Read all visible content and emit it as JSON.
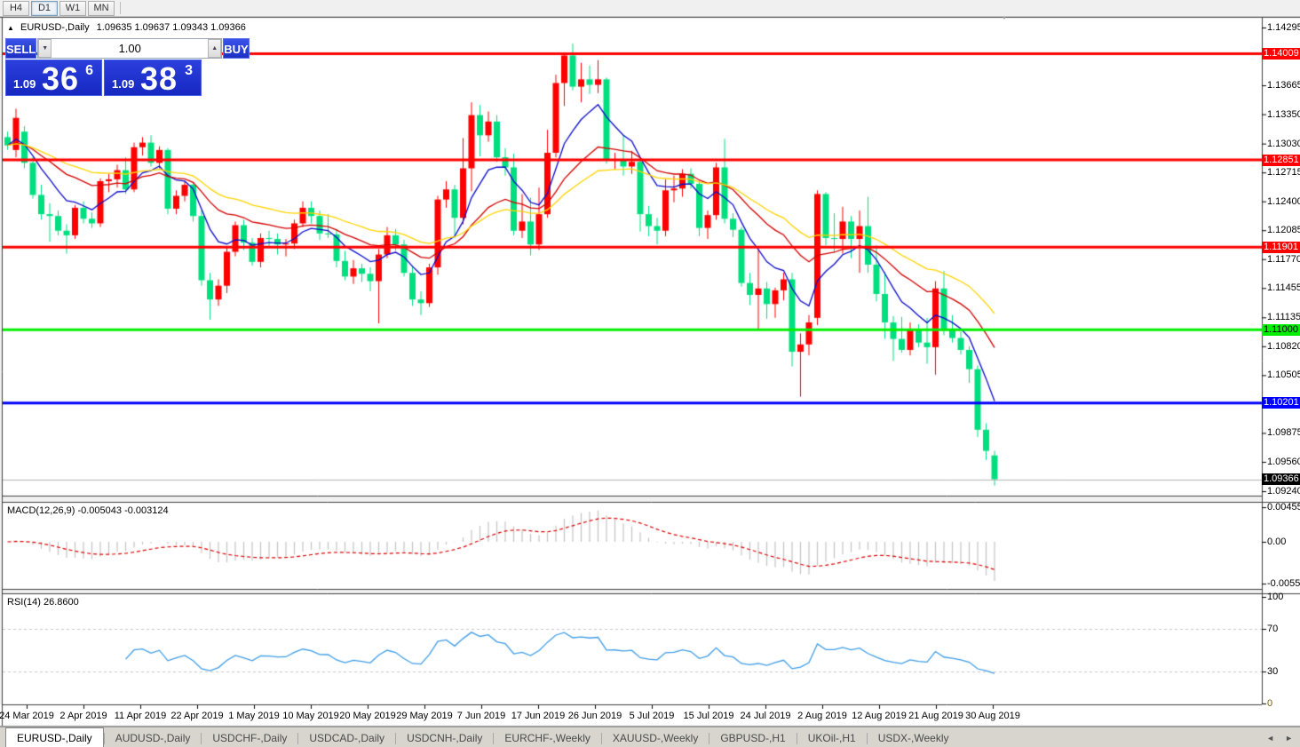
{
  "toolbar": {
    "timeframes": [
      {
        "label": "H4",
        "active": false
      },
      {
        "label": "D1",
        "active": true
      },
      {
        "label": "W1",
        "active": false
      },
      {
        "label": "MN",
        "active": false
      }
    ]
  },
  "icons": {
    "panel_toggle": "▲",
    "spinner_down": "▼",
    "spinner_up": "▲",
    "autoscroll_marker": "▼",
    "tab_left": "◄",
    "tab_right": "►"
  },
  "chart": {
    "symbol": "EURUSD-,Daily",
    "ohlc_text": "1.09635 1.09637 1.09343 1.09366",
    "trade_panel": {
      "sell_label": "SELL",
      "buy_label": "BUY",
      "volume": "1.00",
      "sell_big": "1.09",
      "sell_main": "36",
      "sell_sup": "6",
      "buy_big": "1.09",
      "buy_main": "38",
      "buy_sup": "3"
    }
  },
  "price_axis": {
    "ticks": [
      "1.14295",
      "1.13665",
      "1.13350",
      "1.13030",
      "1.12715",
      "1.12400",
      "1.12085",
      "1.11770",
      "1.11455",
      "1.11135",
      "1.10820",
      "1.10505",
      "1.09875",
      "1.09560",
      "1.09240"
    ],
    "badges": [
      {
        "label": "1.14009",
        "bg": "#ff0000",
        "fg": "#ffffff"
      },
      {
        "label": "1.12851",
        "bg": "#ff0000",
        "fg": "#ffffff"
      },
      {
        "label": "1.11901",
        "bg": "#ff0000",
        "fg": "#ffffff"
      },
      {
        "label": "1.11000",
        "bg": "#00ee00",
        "fg": "#000000"
      },
      {
        "label": "1.10201",
        "bg": "#0000ff",
        "fg": "#ffffff"
      },
      {
        "label": "1.09366",
        "bg": "#000000",
        "fg": "#ffffff"
      }
    ]
  },
  "indicators": {
    "macd": {
      "label": "MACD(12,26,9) -0.005043 -0.003124",
      "fast": 12,
      "slow": 26,
      "signal": 9,
      "current_main": -0.005043,
      "current_signal": -0.003124,
      "axis_labels": [
        "0.00455",
        "0.00",
        "-0.0055"
      ],
      "hist_color": "#c4c4c4",
      "signal_color": "#dd0000"
    },
    "rsi": {
      "label": "RSI(14) 26.8600",
      "period": 14,
      "current": 26.86,
      "axis_labels": [
        "100",
        "70",
        "30",
        "0"
      ],
      "levels": [
        70,
        30
      ],
      "line_color": "#3f9de8"
    }
  },
  "date_axis": {
    "labels": [
      "24 Mar 2019",
      "2 Apr 2019",
      "11 Apr 2019",
      "22 Apr 2019",
      "1 May 2019",
      "10 May 2019",
      "20 May 2019",
      "29 May 2019",
      "7 Jun 2019",
      "17 Jun 2019",
      "26 Jun 2019",
      "5 Jul 2019",
      "15 Jul 2019",
      "24 Jul 2019",
      "2 Aug 2019",
      "12 Aug 2019",
      "21 Aug 2019",
      "30 Aug 2019"
    ]
  },
  "tabs": {
    "items": [
      {
        "label": "EURUSD-,Daily",
        "active": true
      },
      {
        "label": "AUDUSD-,Daily",
        "active": false
      },
      {
        "label": "USDCHF-,Daily",
        "active": false
      },
      {
        "label": "USDCAD-,Daily",
        "active": false
      },
      {
        "label": "USDCNH-,Daily",
        "active": false
      },
      {
        "label": "EURCHF-,Weekly",
        "active": false
      },
      {
        "label": "XAUUSD-,Weekly",
        "active": false
      },
      {
        "label": "GBPUSD-,H1",
        "active": false
      },
      {
        "label": "UKOil-,H1",
        "active": false
      },
      {
        "label": "USDX-,Weekly",
        "active": false
      }
    ]
  },
  "chart_data": {
    "type": "candlestick",
    "symbol": "EURUSD",
    "timeframe": "Daily",
    "ylim": [
      1.0924,
      1.14295
    ],
    "bull_color": "#ff0000",
    "bear_color": "#00df7f",
    "hlines": [
      {
        "price": 1.14009,
        "color": "#ff0000",
        "width": 3
      },
      {
        "price": 1.12851,
        "color": "#ff0000",
        "width": 3
      },
      {
        "price": 1.11901,
        "color": "#ff0000",
        "width": 3
      },
      {
        "price": 1.11,
        "color": "#00ee00",
        "width": 3
      },
      {
        "price": 1.10201,
        "color": "#0000ff",
        "width": 3
      }
    ],
    "current_price_line": {
      "price": 1.09366,
      "color": "#b4b4b4",
      "width": 1
    },
    "moving_averages": [
      {
        "type": "ema",
        "period": 8,
        "color": "#0a0acd"
      },
      {
        "type": "ema",
        "period": 20,
        "color": "#d40000"
      },
      {
        "type": "ema",
        "period": 34,
        "color": "#ffd400"
      }
    ],
    "ohlc": [
      [
        1.131,
        1.1316,
        1.1296,
        1.1301
      ],
      [
        1.1296,
        1.1341,
        1.1288,
        1.1331
      ],
      [
        1.1316,
        1.1322,
        1.1276,
        1.1282
      ],
      [
        1.1282,
        1.1288,
        1.1243,
        1.1247
      ],
      [
        1.1247,
        1.1258,
        1.122,
        1.1226
      ],
      [
        1.1226,
        1.1238,
        1.1196,
        1.1224
      ],
      [
        1.1224,
        1.123,
        1.1203,
        1.1208
      ],
      [
        1.1208,
        1.1215,
        1.1183,
        1.1203
      ],
      [
        1.1203,
        1.1236,
        1.1199,
        1.1233
      ],
      [
        1.1233,
        1.124,
        1.1216,
        1.1221
      ],
      [
        1.1221,
        1.1228,
        1.1211,
        1.1216
      ],
      [
        1.1216,
        1.1265,
        1.1212,
        1.1262
      ],
      [
        1.1262,
        1.127,
        1.125,
        1.1264
      ],
      [
        1.1264,
        1.128,
        1.1255,
        1.1274
      ],
      [
        1.1274,
        1.1288,
        1.1248,
        1.1253
      ],
      [
        1.1253,
        1.1304,
        1.125,
        1.1299
      ],
      [
        1.1299,
        1.131,
        1.129,
        1.1304
      ],
      [
        1.1304,
        1.1312,
        1.1278,
        1.1282
      ],
      [
        1.1282,
        1.13,
        1.1276,
        1.1296
      ],
      [
        1.1296,
        1.1298,
        1.1226,
        1.1232
      ],
      [
        1.1232,
        1.1252,
        1.1226,
        1.1246
      ],
      [
        1.1246,
        1.1262,
        1.124,
        1.1258
      ],
      [
        1.1258,
        1.126,
        1.1218,
        1.1224
      ],
      [
        1.1224,
        1.123,
        1.1148,
        1.1154
      ],
      [
        1.1154,
        1.1162,
        1.1111,
        1.1133
      ],
      [
        1.1133,
        1.1155,
        1.1126,
        1.1148
      ],
      [
        1.1148,
        1.119,
        1.114,
        1.1185
      ],
      [
        1.1185,
        1.1218,
        1.118,
        1.1214
      ],
      [
        1.1214,
        1.122,
        1.1187,
        1.1195
      ],
      [
        1.1195,
        1.12,
        1.117,
        1.1174
      ],
      [
        1.1174,
        1.1205,
        1.1168,
        1.12
      ],
      [
        1.12,
        1.1208,
        1.119,
        1.1199
      ],
      [
        1.1199,
        1.1205,
        1.1182,
        1.1193
      ],
      [
        1.1193,
        1.1199,
        1.118,
        1.1194
      ],
      [
        1.1194,
        1.122,
        1.1188,
        1.1216
      ],
      [
        1.1216,
        1.124,
        1.1212,
        1.1233
      ],
      [
        1.1233,
        1.124,
        1.1216,
        1.1224
      ],
      [
        1.1224,
        1.123,
        1.1198,
        1.1205
      ],
      [
        1.1205,
        1.1226,
        1.12,
        1.1204
      ],
      [
        1.1204,
        1.121,
        1.1168,
        1.1175
      ],
      [
        1.1175,
        1.1186,
        1.1154,
        1.1158
      ],
      [
        1.1158,
        1.1176,
        1.115,
        1.1167
      ],
      [
        1.1167,
        1.1172,
        1.1152,
        1.1161
      ],
      [
        1.1161,
        1.1168,
        1.1142,
        1.1153
      ],
      [
        1.1153,
        1.1188,
        1.1107,
        1.1182
      ],
      [
        1.1182,
        1.1212,
        1.1178,
        1.1203
      ],
      [
        1.1203,
        1.121,
        1.1186,
        1.1193
      ],
      [
        1.1193,
        1.1198,
        1.1158,
        1.1162
      ],
      [
        1.1162,
        1.117,
        1.1126,
        1.1133
      ],
      [
        1.1133,
        1.1142,
        1.1116,
        1.1129
      ],
      [
        1.1129,
        1.1172,
        1.1125,
        1.1168
      ],
      [
        1.1168,
        1.1246,
        1.116,
        1.1242
      ],
      [
        1.1242,
        1.1262,
        1.1233,
        1.1253
      ],
      [
        1.1253,
        1.1258,
        1.12,
        1.1222
      ],
      [
        1.1222,
        1.1309,
        1.1215,
        1.1276
      ],
      [
        1.1276,
        1.1348,
        1.1251,
        1.1334
      ],
      [
        1.1334,
        1.1345,
        1.1289,
        1.1312
      ],
      [
        1.1312,
        1.1338,
        1.1305,
        1.1327
      ],
      [
        1.1327,
        1.1334,
        1.1283,
        1.1288
      ],
      [
        1.1288,
        1.1298,
        1.1268,
        1.1277
      ],
      [
        1.1277,
        1.1292,
        1.1203,
        1.1208
      ],
      [
        1.1208,
        1.1248,
        1.12,
        1.1218
      ],
      [
        1.1218,
        1.1244,
        1.1181,
        1.1193
      ],
      [
        1.1193,
        1.1255,
        1.1187,
        1.1226
      ],
      [
        1.1226,
        1.1318,
        1.1222,
        1.1293
      ],
      [
        1.1293,
        1.1378,
        1.1288,
        1.1369
      ],
      [
        1.1369,
        1.1402,
        1.1344,
        1.1399
      ],
      [
        1.1399,
        1.1412,
        1.1361,
        1.1365
      ],
      [
        1.1365,
        1.1391,
        1.1348,
        1.1373
      ],
      [
        1.1373,
        1.1388,
        1.1357,
        1.1367
      ],
      [
        1.1367,
        1.1394,
        1.1358,
        1.1373
      ],
      [
        1.1373,
        1.1375,
        1.1281,
        1.1285
      ],
      [
        1.1285,
        1.1293,
        1.1275,
        1.1286
      ],
      [
        1.1286,
        1.1312,
        1.1268,
        1.1278
      ],
      [
        1.1278,
        1.1295,
        1.127,
        1.1283
      ],
      [
        1.1283,
        1.1288,
        1.1207,
        1.1226
      ],
      [
        1.1226,
        1.1235,
        1.1202,
        1.1213
      ],
      [
        1.1213,
        1.1222,
        1.1193,
        1.1208
      ],
      [
        1.1208,
        1.1264,
        1.1202,
        1.1252
      ],
      [
        1.1252,
        1.1268,
        1.1239,
        1.1254
      ],
      [
        1.1254,
        1.1275,
        1.1245,
        1.127
      ],
      [
        1.127,
        1.1276,
        1.1254,
        1.1259
      ],
      [
        1.1259,
        1.1262,
        1.1202,
        1.1211
      ],
      [
        1.1211,
        1.123,
        1.1199,
        1.1225
      ],
      [
        1.1225,
        1.1282,
        1.122,
        1.1277
      ],
      [
        1.1277,
        1.1308,
        1.1216,
        1.1221
      ],
      [
        1.1221,
        1.1227,
        1.1201,
        1.1209
      ],
      [
        1.1209,
        1.1212,
        1.1147,
        1.1151
      ],
      [
        1.1151,
        1.1162,
        1.1127,
        1.1138
      ],
      [
        1.1138,
        1.1187,
        1.1101,
        1.1145
      ],
      [
        1.1145,
        1.1152,
        1.1112,
        1.1128
      ],
      [
        1.1128,
        1.1146,
        1.1113,
        1.1143
      ],
      [
        1.1143,
        1.1162,
        1.1132,
        1.1155
      ],
      [
        1.1155,
        1.1162,
        1.106,
        1.1076
      ],
      [
        1.1076,
        1.1096,
        1.1027,
        1.1084
      ],
      [
        1.1084,
        1.1116,
        1.1072,
        1.1108
      ],
      [
        1.1113,
        1.1252,
        1.1105,
        1.1248
      ],
      [
        1.1248,
        1.125,
        1.1192,
        1.12
      ],
      [
        1.12,
        1.1227,
        1.1184,
        1.1199
      ],
      [
        1.1199,
        1.1234,
        1.1183,
        1.1218
      ],
      [
        1.1218,
        1.1224,
        1.1178,
        1.1199
      ],
      [
        1.1199,
        1.123,
        1.1162,
        1.1213
      ],
      [
        1.1213,
        1.1245,
        1.1162,
        1.1171
      ],
      [
        1.1171,
        1.1192,
        1.1131,
        1.1139
      ],
      [
        1.1139,
        1.1163,
        1.109,
        1.1108
      ],
      [
        1.1108,
        1.1115,
        1.1066,
        1.109
      ],
      [
        1.109,
        1.1114,
        1.1075,
        1.1078
      ],
      [
        1.1078,
        1.1108,
        1.1072,
        1.11
      ],
      [
        1.11,
        1.1106,
        1.1081,
        1.1086
      ],
      [
        1.1086,
        1.1113,
        1.1063,
        1.1081
      ],
      [
        1.1081,
        1.1153,
        1.1051,
        1.1145
      ],
      [
        1.1145,
        1.1164,
        1.1094,
        1.1101
      ],
      [
        1.1101,
        1.1116,
        1.1086,
        1.1091
      ],
      [
        1.1091,
        1.1098,
        1.1073,
        1.1078
      ],
      [
        1.1078,
        1.1082,
        1.1042,
        1.1057
      ],
      [
        1.1057,
        1.1061,
        1.0983,
        1.0991
      ],
      [
        1.0991,
        1.0998,
        1.0958,
        1.0968
      ],
      [
        1.0963,
        1.0968,
        1.093,
        1.0937
      ]
    ]
  }
}
